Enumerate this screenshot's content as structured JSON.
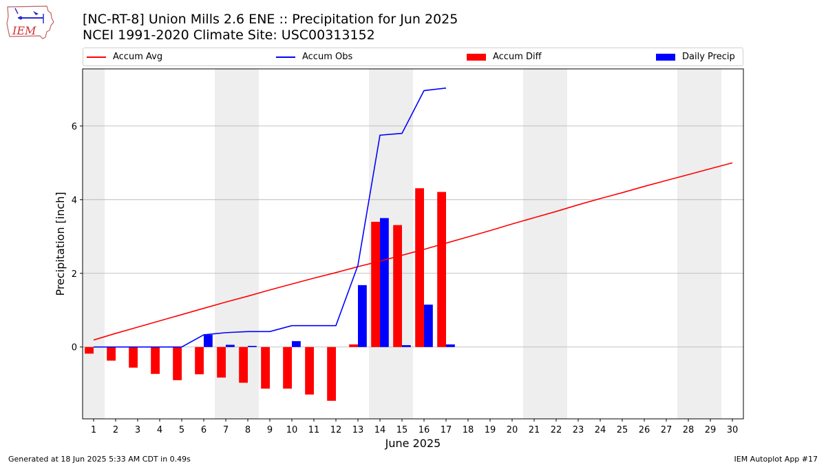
{
  "header": {
    "title_line1": "[NC-RT-8] Union Mills 2.6 ENE :: Precipitation for Jun 2025",
    "title_line2": "NCEI 1991-2020 Climate Site: USC00313152",
    "logo_text": "IEM"
  },
  "footer": {
    "generated": "Generated at 18 Jun 2025 5:33 AM CDT in 0.49s",
    "app": "IEM Autoplot App #17"
  },
  "colors": {
    "accum_avg": "#ff0000",
    "accum_obs": "#0000ff",
    "accum_diff": "#ff0000",
    "daily_precip": "#0000ff",
    "weekend_shade": "#eeeeee",
    "grid": "#b0b0b0"
  },
  "chart_data": {
    "type": "bar",
    "xlabel": "June 2025",
    "ylabel": "Precipitation [inch]",
    "xlim": [
      0.5,
      30.5
    ],
    "ylim": [
      -1.95,
      7.55
    ],
    "yticks": [
      0,
      2,
      4,
      6
    ],
    "grid": "horizontal",
    "legend_position": "top",
    "shaded_days": [
      1,
      7,
      8,
      14,
      15,
      21,
      22,
      28,
      29
    ],
    "x": [
      1,
      2,
      3,
      4,
      5,
      6,
      7,
      8,
      9,
      10,
      11,
      12,
      13,
      14,
      15,
      16,
      17,
      18,
      19,
      20,
      21,
      22,
      23,
      24,
      25,
      26,
      27,
      28,
      29,
      30
    ],
    "series": [
      {
        "name": "Accum Avg",
        "kind": "line",
        "x": [
          1,
          2,
          3,
          4,
          5,
          6,
          7,
          8,
          9,
          10,
          11,
          12,
          13,
          14,
          15,
          16,
          17,
          18,
          19,
          20,
          21,
          22,
          23,
          24,
          25,
          26,
          27,
          28,
          29,
          30
        ],
        "values": [
          0.19,
          0.37,
          0.54,
          0.71,
          0.88,
          1.05,
          1.22,
          1.38,
          1.55,
          1.71,
          1.87,
          2.02,
          2.18,
          2.33,
          2.49,
          2.65,
          2.82,
          2.99,
          3.16,
          3.34,
          3.51,
          3.68,
          3.86,
          4.03,
          4.19,
          4.36,
          4.52,
          4.68,
          4.84,
          5.0
        ]
      },
      {
        "name": "Accum Obs",
        "kind": "line",
        "x": [
          1,
          2,
          3,
          4,
          5,
          6,
          7,
          8,
          9,
          10,
          11,
          12,
          13,
          14,
          15,
          16,
          17
        ],
        "values": [
          0.0,
          0.0,
          0.0,
          0.0,
          0.0,
          0.33,
          0.39,
          0.42,
          0.42,
          0.58,
          0.58,
          0.58,
          2.22,
          5.75,
          5.8,
          6.96,
          7.03
        ]
      },
      {
        "name": "Accum Diff",
        "kind": "bar",
        "x": [
          1,
          2,
          3,
          4,
          5,
          6,
          7,
          8,
          9,
          10,
          11,
          12,
          13,
          14,
          15,
          16,
          17
        ],
        "values": [
          -0.18,
          -0.37,
          -0.56,
          -0.73,
          -0.9,
          -0.74,
          -0.83,
          -0.97,
          -1.13,
          -1.13,
          -1.29,
          -1.46,
          0.07,
          3.4,
          3.31,
          4.31,
          4.21
        ]
      },
      {
        "name": "Daily Precip",
        "kind": "bar",
        "x": [
          1,
          2,
          3,
          4,
          5,
          6,
          7,
          8,
          9,
          10,
          11,
          12,
          13,
          14,
          15,
          16,
          17
        ],
        "values": [
          0,
          0,
          0,
          0,
          0,
          0.33,
          0.06,
          0.03,
          0,
          0.16,
          0,
          0,
          1.68,
          3.5,
          0.05,
          1.15,
          0.07
        ]
      }
    ]
  }
}
